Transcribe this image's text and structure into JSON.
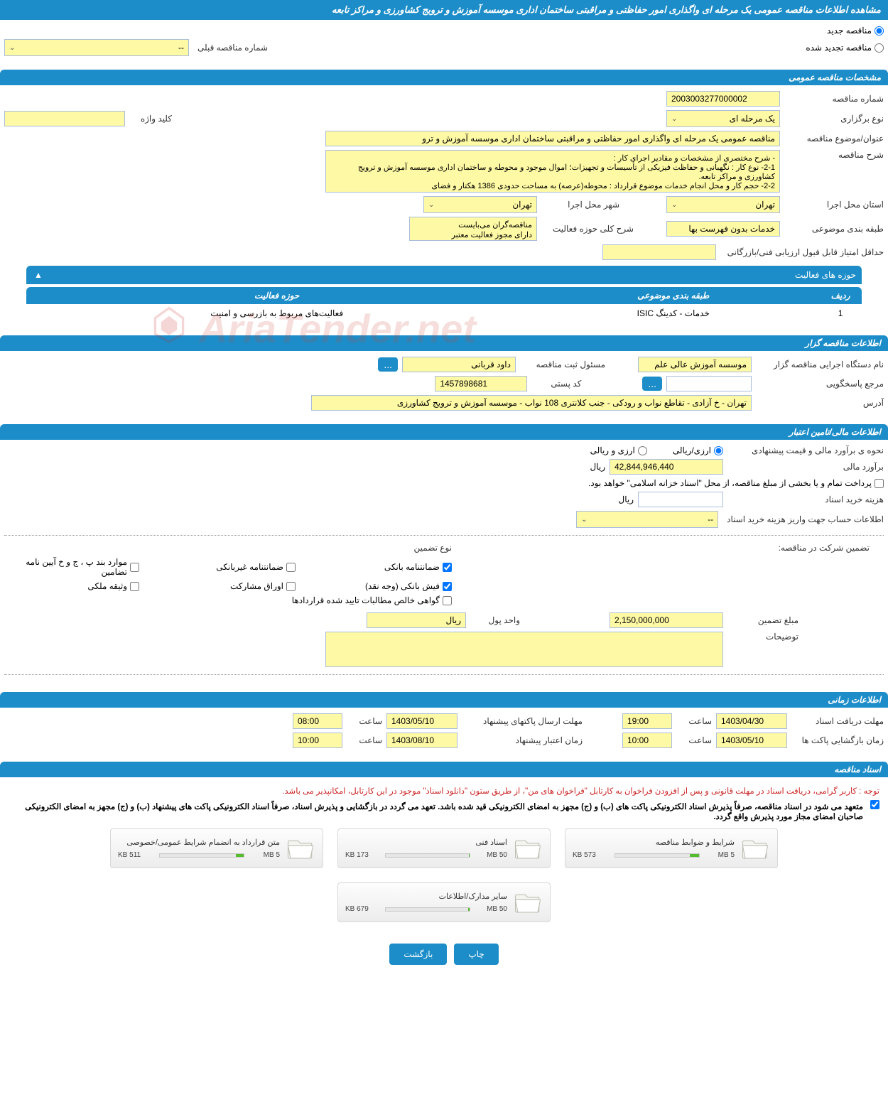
{
  "header": {
    "title": "مشاهده اطلاعات مناقصه عمومی یک مرحله ای واگذاری امور حفاظتی و مراقبتی ساختمان اداری موسسه آموزش و ترویج کشاورزی و مراکز تابعه"
  },
  "topRadios": {
    "new_tender_label": "مناقصه جدید",
    "renewed_tender_label": "مناقصه تجدید شده",
    "prev_number_label": "شماره مناقصه قبلی",
    "prev_number_placeholder": "--"
  },
  "sections": {
    "general": "مشخصات مناقصه عمومی",
    "holder": "اطلاعات مناقصه گزار",
    "finance": "اطلاعات مالی/تامین اعتبار",
    "timing": "اطلاعات زمانی",
    "docs": "اسناد مناقصه"
  },
  "general": {
    "tender_no_label": "شماره مناقصه",
    "tender_no": "2003003277000002",
    "type_label": "نوع برگزاری",
    "type_value": "یک مرحله ای",
    "keyword_label": "کلید واژه",
    "keyword_value": "",
    "subject_label": "عنوان/موضوع مناقصه",
    "subject_value": "مناقصه عمومی یک مرحله ای واگذاری امور حفاظتی و مراقبتی ساختمان اداری موسسه آموزش و ترو",
    "desc_label": "شرح مناقصه",
    "desc_value": "- شرح مختصری از مشخصات و مقادیر اجرای کار :\n2-1- نوع کار : نگهبانی و حفاظت فیزیکی از تأسیسات و تجهیزات؛ اموال موجود و محوطه و ساختمان اداری موسسه آموزش و ترویج کشاورزی و مراکز تابعه.\n2-2- حجم کار و محل انجام خدمات موضوع قرارداد : محوطه(عرصه) به مساحت حدودی 1386 هکتار و فضای",
    "province_label": "استان محل اجرا",
    "province_value": "تهران",
    "city_label": "شهر محل اجرا",
    "city_value": "تهران",
    "class_label": "طبقه بندی موضوعی",
    "class_value": "خدمات بدون فهرست بها",
    "scope_label": "شرح کلی حوزه فعالیت",
    "scope_line1": "مناقصه‌گران می‌بایست",
    "scope_line2": "دارای مجوز فعالیت معتبر",
    "min_score_label": "حداقل امتیاز قابل قبول ارزیابی فنی/بازرگانی",
    "min_score_value": ""
  },
  "activityTable": {
    "header": "حوزه های فعالیت",
    "col_row": "ردیف",
    "col_class": "طبقه بندی موضوعی",
    "col_scope": "حوزه فعالیت",
    "rows": [
      {
        "idx": "1",
        "class": "خدمات - کدینگ ISIC",
        "scope": "فعالیت‌های مربوط به بازرسی و امنیت"
      }
    ],
    "toggle_icon": "▲"
  },
  "holder": {
    "org_label": "نام دستگاه اجرایی مناقصه گزار",
    "org_value": "موسسه آموزش عالی علم",
    "resp_label": "مسئول ثبت مناقصه",
    "resp_value": "داود قربانی",
    "more_btn": "...",
    "answerer_label": "مرجع پاسخگویی",
    "answerer_value": "",
    "answerer_btn": "...",
    "postal_label": "کد پستی",
    "postal_value": "1457898681",
    "address_label": "آدرس",
    "address_value": "تهران - خ آزادی - تقاطع نواب و رودکی - جنب کلانتری 108 نواب - موسسه آموزش و ترویج کشاورزی"
  },
  "finance": {
    "estimate_type_label": "نحوه ی برآورد مالی و قیمت پیشنهادی",
    "opt_rial": "ارزی/ریالی",
    "opt_both": "ارزی و ریالی",
    "estimate_label": "برآورد مالی",
    "estimate_value": "42,844,946,440",
    "currency_rial": "ریال",
    "treasury_note": "پرداخت تمام و یا بخشی از مبلغ مناقصه، از محل \"اسناد خزانه اسلامی\" خواهد بود.",
    "doc_fee_label": "هزینه خرید اسناد",
    "doc_fee_value": "",
    "deposit_info_label": "اطلاعات حساب جهت واریز هزینه خرید اسناد",
    "deposit_info_placeholder": "--",
    "guarantee_header": "تضمین شرکت در مناقصه:",
    "g_type_label": "نوع تضمین",
    "g_bank": "ضمانتنامه بانکی",
    "g_nonbank": "ضمانتنامه غیربانکی",
    "g_bond": "موارد بند پ ، ج و خ آیین نامه تضامین",
    "g_cash": "فیش بانکی (وجه نقد)",
    "g_stock": "اوراق مشارکت",
    "g_property": "وثیقه ملکی",
    "g_cert": "گواهی خالص مطالبات تایید شده قراردادها",
    "g_amount_label": "مبلغ تضمین",
    "g_amount_value": "2,150,000,000",
    "g_unit_label": "واحد پول",
    "g_unit_value": "ریال",
    "g_notes_label": "توضیحات",
    "g_notes_value": ""
  },
  "timing": {
    "doc_deadline_label": "مهلت دریافت اسناد",
    "doc_deadline_date": "1403/04/30",
    "doc_deadline_time_label": "ساعت",
    "doc_deadline_time": "19:00",
    "send_deadline_label": "مهلت ارسال پاکتهای پیشنهاد",
    "send_deadline_date": "1403/05/10",
    "send_deadline_time": "08:00",
    "open_label": "زمان بازگشایی پاکت ها",
    "open_date": "1403/05/10",
    "open_time": "10:00",
    "validity_label": "زمان اعتبار پیشنهاد",
    "validity_date": "1403/08/10",
    "validity_time": "10:00"
  },
  "docs": {
    "warning": "توجه : کاربر گرامی، دریافت اسناد در مهلت قانونی و پس از افزودن فراخوان به کارتابل \"فراخوان های من\"، از طریق ستون \"دانلود اسناد\" موجود در این کارتابل، امکانپذیر می باشد.",
    "agree_text": "متعهد می شود در اسناد مناقصه، صرفاً پذیرش اسناد الکترونیکی پاکت های (ب) و (ج) مجهز به امضای الکترونیکی قید شده باشد. تعهد می گردد در بازگشایی و پذیرش اسناد، صرفاً اسناد الکترونیکی پاکت های پیشنهاد (ب) و (ج) مجهز به امضای الکترونیکی صاحبان امضای مجاز مورد پذیرش واقع گردد.",
    "files": [
      {
        "title": "شرایط و ضوابط مناقصه",
        "used": "573 KB",
        "cap": "5 MB",
        "pct": 11
      },
      {
        "title": "اسناد فنی",
        "used": "173 KB",
        "cap": "50 MB",
        "pct": 1
      },
      {
        "title": "متن قرارداد به انضمام شرایط عمومی/خصوصی",
        "used": "511 KB",
        "cap": "5 MB",
        "pct": 10
      },
      {
        "title": "سایر مدارک/اطلاعات",
        "used": "679 KB",
        "cap": "50 MB",
        "pct": 2
      }
    ]
  },
  "footer": {
    "print_btn": "چاپ",
    "back_btn": "بازگشت"
  },
  "watermark": "AriaTender.net",
  "colors": {
    "primary": "#1c8dc9",
    "input_bg": "#fef9a4",
    "warn": "#c22"
  }
}
